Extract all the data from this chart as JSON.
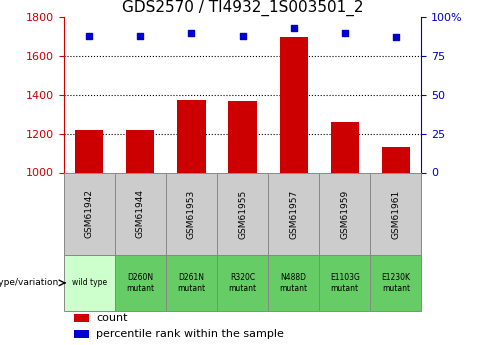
{
  "title": "GDS2570 / TI4932_1S003501_2",
  "samples": [
    "GSM61942",
    "GSM61944",
    "GSM61953",
    "GSM61955",
    "GSM61957",
    "GSM61959",
    "GSM61961"
  ],
  "genotypes": [
    "wild type",
    "D260N\nmutant",
    "D261N\nmutant",
    "R320C\nmutant",
    "N488D\nmutant",
    "E1103G\nmutant",
    "E1230K\nmutant"
  ],
  "counts": [
    1220,
    1220,
    1375,
    1370,
    1700,
    1260,
    1130
  ],
  "percentile_ranks": [
    88,
    88,
    90,
    88,
    93,
    90,
    87
  ],
  "ylim_left": [
    1000,
    1800
  ],
  "ylim_right": [
    0,
    100
  ],
  "yticks_left": [
    1000,
    1200,
    1400,
    1600,
    1800
  ],
  "yticks_right": [
    0,
    25,
    50,
    75,
    100
  ],
  "bar_color": "#cc0000",
  "dot_color": "#0000cc",
  "bar_bottom": 1000,
  "grid_color": "#000000",
  "bg_color": "#ffffff",
  "title_fontsize": 11,
  "tick_fontsize": 8,
  "legend_fontsize": 8,
  "gsm_bg": "#cccccc",
  "wild_type_bg": "#ccffcc",
  "mutant_bg": "#66cc66",
  "cell_border_color": "#888888"
}
